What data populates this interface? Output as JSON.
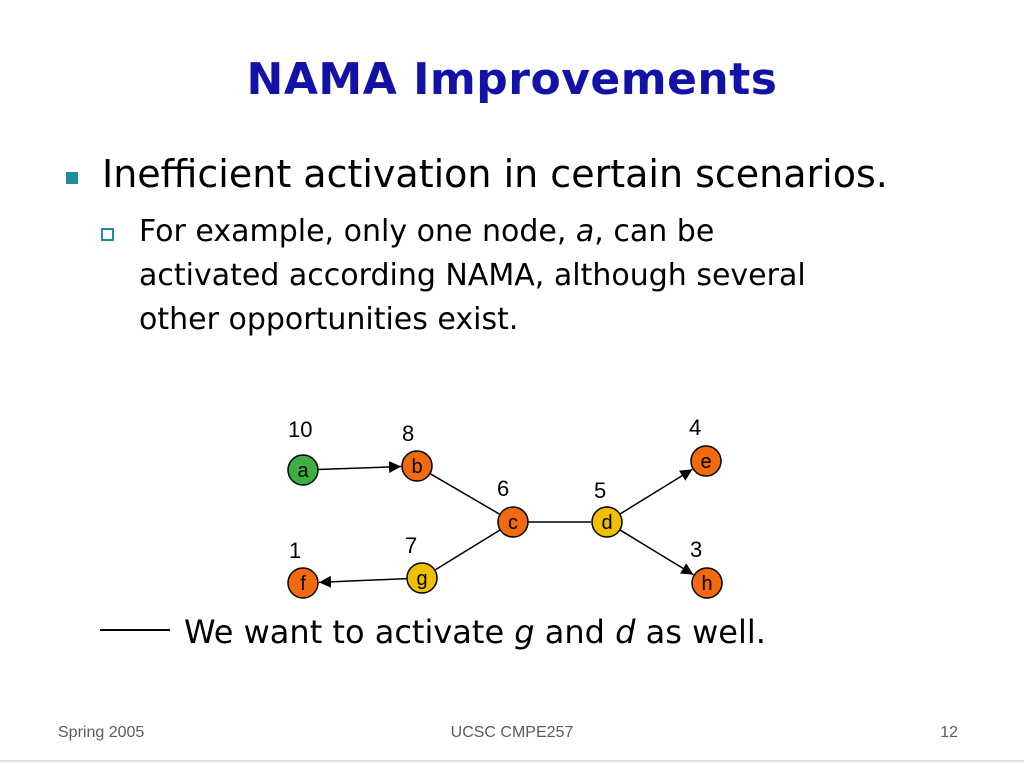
{
  "slide": {
    "title": "NAMA Improvements",
    "bullet": "Inefficient activation in certain scenarios.",
    "sub_bullet": {
      "part1": "For example, only one node, ",
      "italic_node": "a",
      "part2": ", can be",
      "line2": "activated according NAMA, although several",
      "line3": "other opportunities exist."
    },
    "note": {
      "part1": "We want to activate ",
      "g": "g",
      "part2": " and ",
      "d": "d",
      "part3": " as well."
    },
    "footer": {
      "left": "Spring 2005",
      "center": "UCSC CMPE257",
      "right": "12"
    }
  },
  "graph": {
    "colors": {
      "green": "#3cb043",
      "orange": "#f26a10",
      "yellow": "#f0c000",
      "stroke": "#000000"
    },
    "nodes": [
      {
        "id": "a",
        "label": "a",
        "weight": "10",
        "color": "green"
      },
      {
        "id": "b",
        "label": "b",
        "weight": "8",
        "color": "orange"
      },
      {
        "id": "c",
        "label": "c",
        "weight": "6",
        "color": "orange"
      },
      {
        "id": "d",
        "label": "d",
        "weight": "5",
        "color": "yellow"
      },
      {
        "id": "e",
        "label": "e",
        "weight": "4",
        "color": "orange"
      },
      {
        "id": "f",
        "label": "f",
        "weight": "1",
        "color": "orange"
      },
      {
        "id": "g",
        "label": "g",
        "weight": "7",
        "color": "yellow"
      },
      {
        "id": "h",
        "label": "h",
        "weight": "3",
        "color": "orange"
      }
    ],
    "edges": [
      {
        "from": "a",
        "to": "b",
        "arrow": true
      },
      {
        "from": "b",
        "to": "c",
        "arrow": false
      },
      {
        "from": "c",
        "to": "d",
        "arrow": false
      },
      {
        "from": "d",
        "to": "e",
        "arrow": true
      },
      {
        "from": "d",
        "to": "h",
        "arrow": true
      },
      {
        "from": "c",
        "to": "g",
        "arrow": false
      },
      {
        "from": "g",
        "to": "f",
        "arrow": true
      }
    ]
  }
}
